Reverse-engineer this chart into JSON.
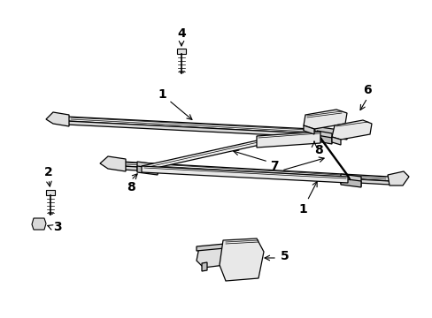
{
  "bg_color": "#ffffff",
  "line_color": "#000000",
  "figsize": [
    4.89,
    3.6
  ],
  "dpi": 100,
  "rail_face": "#e8e8e8",
  "rail_top": "#f5f5f5",
  "bracket_color": "#d0d0d0",
  "cap_color": "#d8d8d8",
  "label_fontsize": 10
}
